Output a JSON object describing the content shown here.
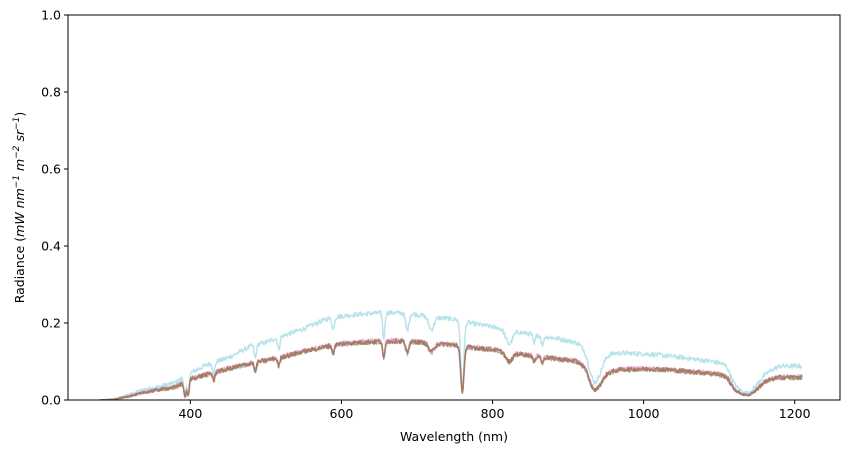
{
  "chart_data": {
    "type": "line",
    "title": "",
    "xlabel": "Wavelength (nm)",
    "ylabel": {
      "prefix": "Radiance (",
      "unit_1": "mW nm",
      "exp_1": "−1",
      "unit_2": " m",
      "exp_2": "−2",
      "unit_3": " sr",
      "exp_3": "−1",
      "suffix": ")"
    },
    "xlim": [
      238,
      1260
    ],
    "ylim": [
      0.0,
      1.0
    ],
    "xticks": [
      400,
      600,
      800,
      1000,
      1200
    ],
    "xtick_labels": [
      "400",
      "600",
      "800",
      "1000",
      "1200"
    ],
    "yticks": [
      0.0,
      0.2,
      0.4,
      0.6,
      0.8,
      1.0
    ],
    "ytick_labels": [
      "0.0",
      "0.2",
      "0.4",
      "0.6",
      "0.8",
      "1.0"
    ],
    "grid": false,
    "x_range": [
      280,
      1210
    ],
    "absorption_lines": [
      {
        "wl": 393,
        "d": 0.85,
        "w": 2
      },
      {
        "wl": 397,
        "d": 0.8,
        "w": 2
      },
      {
        "wl": 431,
        "d": 0.3,
        "w": 2
      },
      {
        "wl": 486,
        "d": 0.25,
        "w": 2
      },
      {
        "wl": 517,
        "d": 0.2,
        "w": 2
      },
      {
        "wl": 589,
        "d": 0.15,
        "w": 2
      },
      {
        "wl": 656,
        "d": 0.3,
        "w": 2
      },
      {
        "wl": 687,
        "d": 0.2,
        "w": 3
      },
      {
        "wl": 719,
        "d": 0.15,
        "w": 5
      },
      {
        "wl": 760,
        "d": 0.85,
        "w": 3
      },
      {
        "wl": 822,
        "d": 0.2,
        "w": 6
      },
      {
        "wl": 855,
        "d": 0.15,
        "w": 2
      },
      {
        "wl": 866,
        "d": 0.15,
        "w": 2
      },
      {
        "wl": 935,
        "d": 0.5,
        "w": 12
      },
      {
        "wl": 1135,
        "d": 0.6,
        "w": 18
      }
    ],
    "series": [
      {
        "name": "series-cyan",
        "color": "#9edae5",
        "opacity": 0.75,
        "points": [
          [
            280,
            0.0
          ],
          [
            300,
            0.002
          ],
          [
            320,
            0.015
          ],
          [
            340,
            0.028
          ],
          [
            360,
            0.035
          ],
          [
            380,
            0.045
          ],
          [
            400,
            0.07
          ],
          [
            420,
            0.09
          ],
          [
            450,
            0.11
          ],
          [
            480,
            0.14
          ],
          [
            500,
            0.15
          ],
          [
            520,
            0.165
          ],
          [
            550,
            0.185
          ],
          [
            580,
            0.21
          ],
          [
            600,
            0.218
          ],
          [
            620,
            0.222
          ],
          [
            640,
            0.225
          ],
          [
            660,
            0.227
          ],
          [
            680,
            0.226
          ],
          [
            700,
            0.222
          ],
          [
            720,
            0.215
          ],
          [
            750,
            0.21
          ],
          [
            770,
            0.2
          ],
          [
            800,
            0.19
          ],
          [
            830,
            0.178
          ],
          [
            860,
            0.168
          ],
          [
            890,
            0.158
          ],
          [
            910,
            0.15
          ],
          [
            925,
            0.145
          ],
          [
            935,
            0.09
          ],
          [
            950,
            0.12
          ],
          [
            970,
            0.122
          ],
          [
            1000,
            0.12
          ],
          [
            1030,
            0.115
          ],
          [
            1060,
            0.108
          ],
          [
            1090,
            0.1
          ],
          [
            1110,
            0.095
          ],
          [
            1120,
            0.06
          ],
          [
            1140,
            0.045
          ],
          [
            1160,
            0.07
          ],
          [
            1180,
            0.088
          ],
          [
            1210,
            0.088
          ]
        ]
      },
      {
        "name": "series-green",
        "color": "#7fa87f",
        "opacity": 0.7,
        "points": [
          [
            280,
            0.0
          ],
          [
            300,
            0.002
          ],
          [
            320,
            0.01
          ],
          [
            340,
            0.02
          ],
          [
            360,
            0.027
          ],
          [
            380,
            0.033
          ],
          [
            400,
            0.055
          ],
          [
            420,
            0.065
          ],
          [
            450,
            0.08
          ],
          [
            480,
            0.095
          ],
          [
            500,
            0.102
          ],
          [
            520,
            0.11
          ],
          [
            550,
            0.125
          ],
          [
            580,
            0.138
          ],
          [
            600,
            0.145
          ],
          [
            620,
            0.148
          ],
          [
            640,
            0.15
          ],
          [
            660,
            0.151
          ],
          [
            680,
            0.152
          ],
          [
            700,
            0.15
          ],
          [
            720,
            0.146
          ],
          [
            750,
            0.142
          ],
          [
            770,
            0.136
          ],
          [
            800,
            0.13
          ],
          [
            830,
            0.12
          ],
          [
            860,
            0.112
          ],
          [
            890,
            0.105
          ],
          [
            910,
            0.1
          ],
          [
            925,
            0.095
          ],
          [
            935,
            0.05
          ],
          [
            950,
            0.07
          ],
          [
            970,
            0.078
          ],
          [
            1000,
            0.08
          ],
          [
            1030,
            0.078
          ],
          [
            1060,
            0.073
          ],
          [
            1090,
            0.068
          ],
          [
            1110,
            0.065
          ],
          [
            1120,
            0.04
          ],
          [
            1140,
            0.03
          ],
          [
            1160,
            0.05
          ],
          [
            1180,
            0.058
          ],
          [
            1210,
            0.058
          ]
        ]
      },
      {
        "name": "series-pink",
        "color": "#e377c2",
        "opacity": 0.55,
        "points": [
          [
            280,
            0.0
          ],
          [
            300,
            0.002
          ],
          [
            320,
            0.011
          ],
          [
            340,
            0.021
          ],
          [
            360,
            0.028
          ],
          [
            380,
            0.034
          ],
          [
            400,
            0.056
          ],
          [
            420,
            0.066
          ],
          [
            450,
            0.082
          ],
          [
            480,
            0.096
          ],
          [
            500,
            0.104
          ],
          [
            520,
            0.112
          ],
          [
            550,
            0.127
          ],
          [
            580,
            0.14
          ],
          [
            600,
            0.147
          ],
          [
            620,
            0.151
          ],
          [
            640,
            0.153
          ],
          [
            660,
            0.154
          ],
          [
            680,
            0.155
          ],
          [
            700,
            0.152
          ],
          [
            720,
            0.148
          ],
          [
            750,
            0.144
          ],
          [
            770,
            0.138
          ],
          [
            800,
            0.132
          ],
          [
            830,
            0.122
          ],
          [
            860,
            0.114
          ],
          [
            890,
            0.107
          ],
          [
            910,
            0.102
          ],
          [
            925,
            0.097
          ],
          [
            935,
            0.052
          ],
          [
            950,
            0.072
          ],
          [
            970,
            0.08
          ],
          [
            1000,
            0.082
          ],
          [
            1030,
            0.08
          ],
          [
            1060,
            0.075
          ],
          [
            1090,
            0.07
          ],
          [
            1110,
            0.066
          ],
          [
            1120,
            0.041
          ],
          [
            1140,
            0.031
          ],
          [
            1160,
            0.051
          ],
          [
            1180,
            0.06
          ],
          [
            1210,
            0.06
          ]
        ]
      },
      {
        "name": "series-brown",
        "color": "#a07050",
        "opacity": 0.8,
        "points": [
          [
            280,
            0.0
          ],
          [
            300,
            0.002
          ],
          [
            320,
            0.01
          ],
          [
            340,
            0.02
          ],
          [
            360,
            0.027
          ],
          [
            380,
            0.033
          ],
          [
            400,
            0.055
          ],
          [
            420,
            0.065
          ],
          [
            450,
            0.081
          ],
          [
            480,
            0.095
          ],
          [
            500,
            0.103
          ],
          [
            520,
            0.111
          ],
          [
            550,
            0.126
          ],
          [
            580,
            0.139
          ],
          [
            600,
            0.146
          ],
          [
            620,
            0.149
          ],
          [
            640,
            0.151
          ],
          [
            660,
            0.152
          ],
          [
            680,
            0.153
          ],
          [
            700,
            0.151
          ],
          [
            720,
            0.147
          ],
          [
            750,
            0.143
          ],
          [
            770,
            0.137
          ],
          [
            800,
            0.131
          ],
          [
            830,
            0.121
          ],
          [
            860,
            0.113
          ],
          [
            890,
            0.106
          ],
          [
            910,
            0.101
          ],
          [
            925,
            0.096
          ],
          [
            935,
            0.051
          ],
          [
            950,
            0.071
          ],
          [
            970,
            0.079
          ],
          [
            1000,
            0.081
          ],
          [
            1030,
            0.079
          ],
          [
            1060,
            0.074
          ],
          [
            1090,
            0.069
          ],
          [
            1110,
            0.065
          ],
          [
            1120,
            0.04
          ],
          [
            1140,
            0.03
          ],
          [
            1160,
            0.05
          ],
          [
            1180,
            0.059
          ],
          [
            1210,
            0.059
          ]
        ]
      }
    ]
  }
}
